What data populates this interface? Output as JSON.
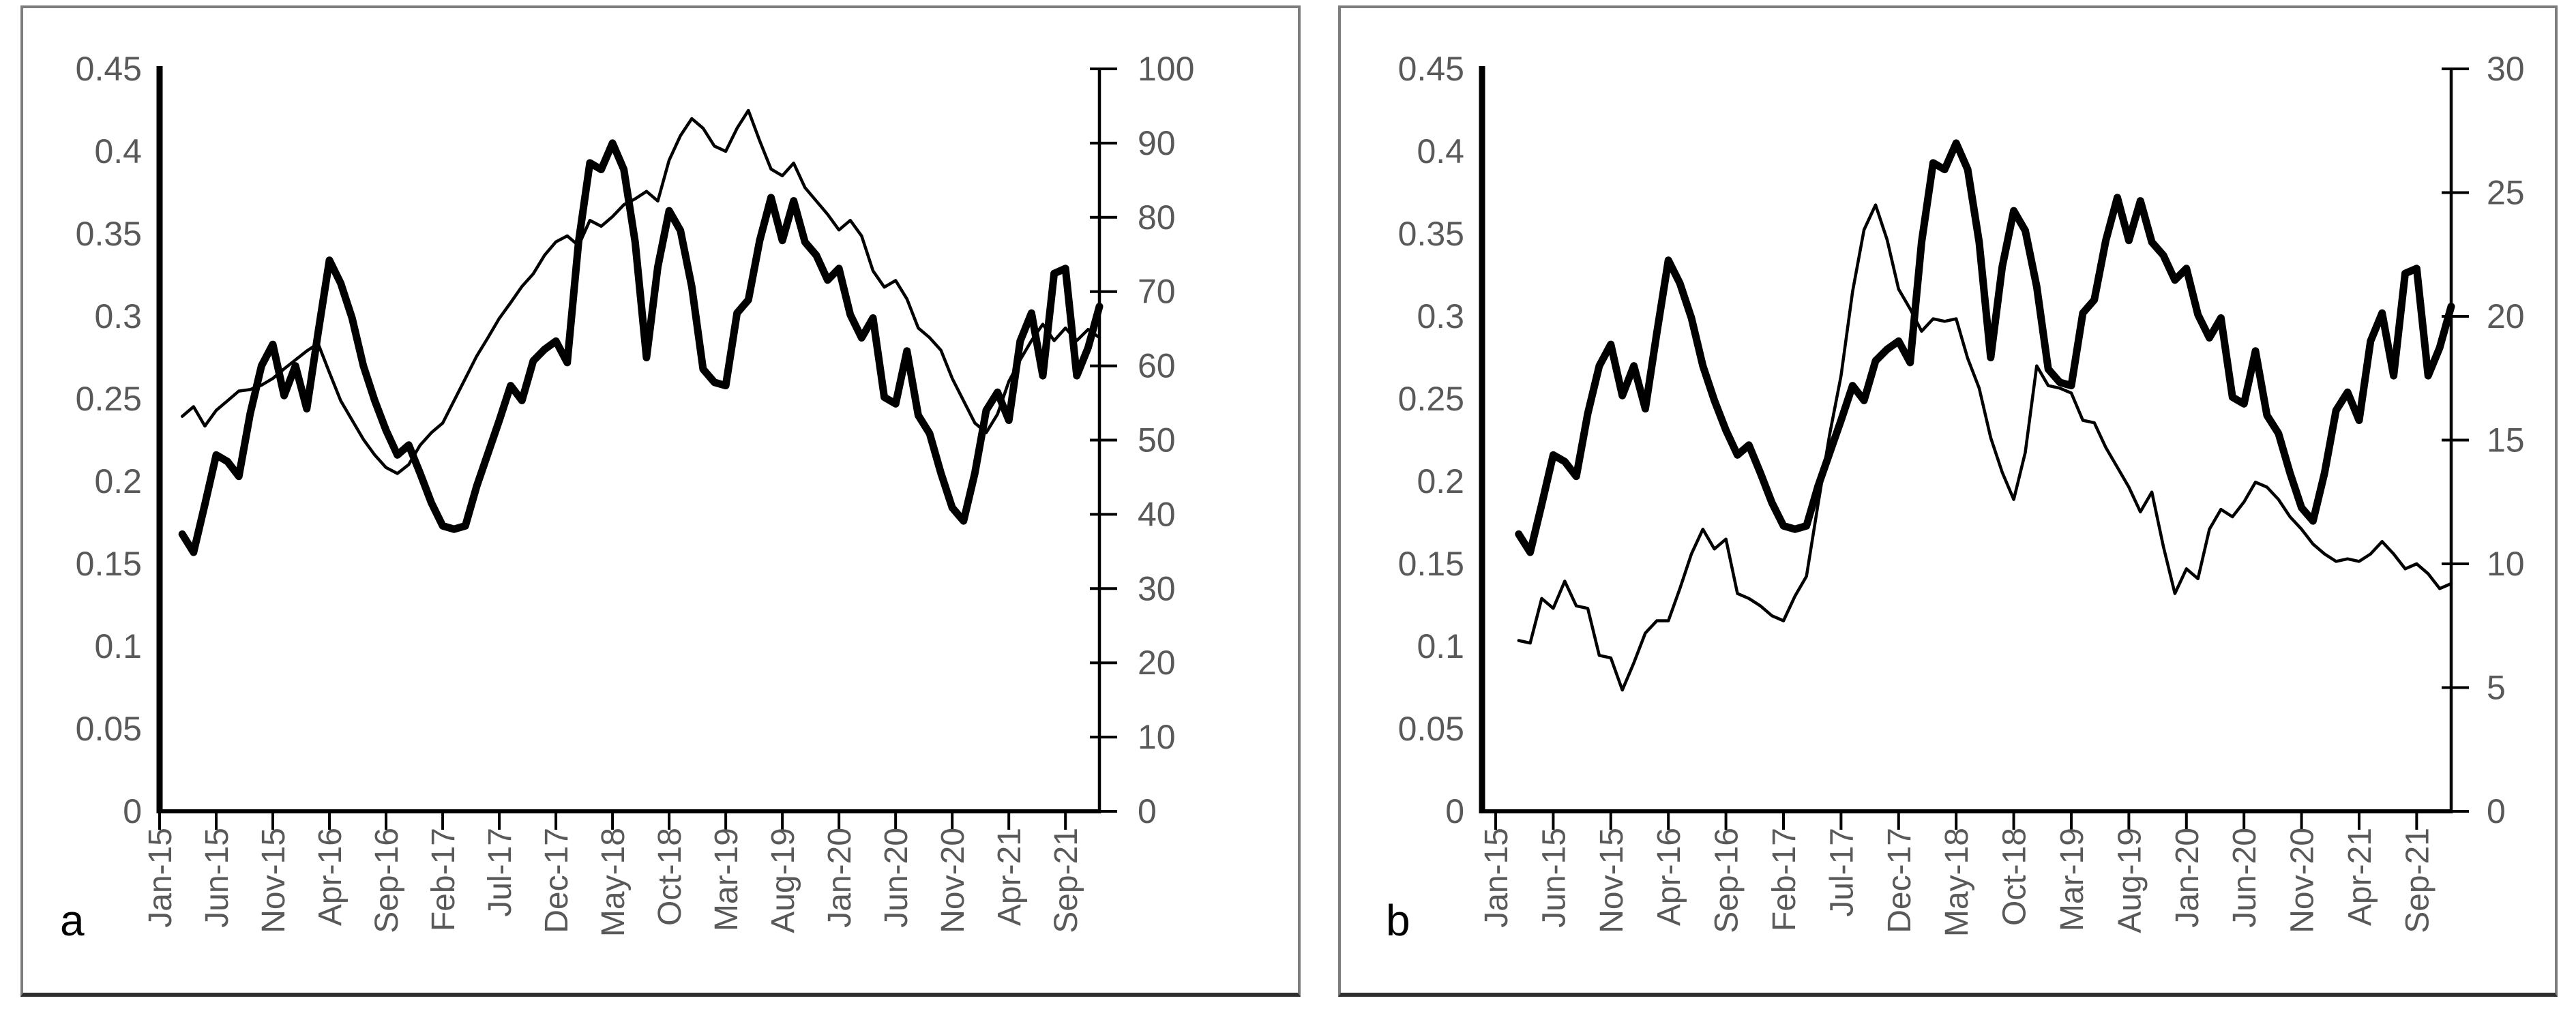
{
  "figure": {
    "background": "#ffffff",
    "series_color": "#000000",
    "axis_label_color": "#595959",
    "axis_line_color": "#000000",
    "panel_border_color": "#7d7d7d"
  },
  "panels": [
    {
      "label": "a"
    },
    {
      "label": "b"
    }
  ],
  "chart_data": [
    {
      "id": "a",
      "type": "line",
      "title": "",
      "corner_label": "a",
      "grid": "off",
      "legend": "none",
      "categories": [
        "Jan-15",
        "Feb-15",
        "Mar-15",
        "Apr-15",
        "May-15",
        "Jun-15",
        "Jul-15",
        "Aug-15",
        "Sep-15",
        "Oct-15",
        "Nov-15",
        "Dec-15",
        "Jan-16",
        "Feb-16",
        "Mar-16",
        "Apr-16",
        "May-16",
        "Jun-16",
        "Jul-16",
        "Aug-16",
        "Sep-16",
        "Oct-16",
        "Nov-16",
        "Dec-16",
        "Jan-17",
        "Feb-17",
        "Mar-17",
        "Apr-17",
        "May-17",
        "Jun-17",
        "Jul-17",
        "Aug-17",
        "Sep-17",
        "Oct-17",
        "Nov-17",
        "Dec-17",
        "Jan-18",
        "Feb-18",
        "Mar-18",
        "Apr-18",
        "May-18",
        "Jun-18",
        "Jul-18",
        "Aug-18",
        "Sep-18",
        "Oct-18",
        "Nov-18",
        "Dec-18",
        "Jan-19",
        "Feb-19",
        "Mar-19",
        "Apr-19",
        "May-19",
        "Jun-19",
        "Jul-19",
        "Aug-19",
        "Sep-19",
        "Oct-19",
        "Nov-19",
        "Dec-19",
        "Jan-20",
        "Feb-20",
        "Mar-20",
        "Apr-20",
        "May-20",
        "Jun-20",
        "Jul-20",
        "Aug-20",
        "Sep-20",
        "Oct-20",
        "Nov-20",
        "Dec-20",
        "Jan-21",
        "Feb-21",
        "Mar-21",
        "Apr-21",
        "May-21",
        "Jun-21",
        "Jul-21",
        "Aug-21",
        "Sep-21",
        "Oct-21",
        "Nov-21",
        "Dec-21"
      ],
      "x_tick_labels": [
        "Jan-15",
        "Jun-15",
        "Nov-15",
        "Apr-16",
        "Sep-16",
        "Feb-17",
        "Jul-17",
        "Dec-17",
        "May-18",
        "Oct-18",
        "Mar-19",
        "Aug-19",
        "Jan-20",
        "Jun-20",
        "Nov-20",
        "Apr-21",
        "Sep-21"
      ],
      "x_tick_every": 5,
      "left_axis": {
        "min": 0,
        "max": 0.45,
        "labels": [
          "0",
          "0.05",
          "0.1",
          "0.15",
          "0.2",
          "0.25",
          "0.3",
          "0.35",
          "0.4",
          "0.45"
        ]
      },
      "right_axis": {
        "min": 0,
        "max": 100,
        "labels": [
          "0",
          "10",
          "20",
          "30",
          "40",
          "50",
          "60",
          "70",
          "80",
          "90",
          "100"
        ]
      },
      "series": [
        {
          "name": "thin-line-right-axis",
          "axis": "right",
          "stroke_width": 4.5,
          "values": [
            null,
            null,
            53.2,
            54.5,
            51.9,
            54.0,
            55.3,
            56.6,
            56.8,
            57.4,
            58.3,
            59.6,
            60.8,
            62.0,
            63.0,
            59.1,
            55.3,
            52.7,
            50.1,
            48.0,
            46.3,
            45.5,
            46.7,
            49.3,
            51.0,
            52.3,
            55.3,
            58.3,
            61.3,
            63.8,
            66.4,
            68.5,
            70.7,
            72.4,
            74.9,
            76.7,
            77.5,
            76.2,
            79.6,
            78.8,
            80.1,
            81.7,
            82.5,
            83.5,
            82.2,
            87.7,
            91.0,
            93.3,
            92.0,
            89.6,
            88.9,
            92.0,
            94.4,
            90.3,
            86.5,
            85.6,
            87.3,
            84.0,
            82.2,
            80.4,
            78.3,
            79.6,
            77.5,
            72.8,
            70.6,
            71.5,
            69.0,
            65.1,
            63.8,
            62.1,
            58.3,
            55.3,
            52.3,
            51.0,
            53.5,
            57.9,
            60.8,
            63.4,
            65.6,
            63.4,
            65.1,
            63.4,
            64.9,
            63.8
          ]
        },
        {
          "name": "thick-line-left-axis",
          "axis": "left",
          "stroke_width": 11,
          "values": [
            null,
            null,
            0.168,
            0.157,
            0.186,
            0.216,
            0.212,
            0.203,
            0.241,
            0.27,
            0.283,
            0.252,
            0.27,
            0.244,
            0.29,
            0.334,
            0.32,
            0.299,
            0.27,
            0.249,
            0.231,
            0.216,
            0.222,
            0.205,
            0.187,
            0.173,
            0.171,
            0.173,
            0.197,
            0.217,
            0.237,
            0.258,
            0.249,
            0.273,
            0.28,
            0.285,
            0.272,
            0.345,
            0.393,
            0.389,
            0.405,
            0.389,
            0.345,
            0.275,
            0.33,
            0.364,
            0.352,
            0.318,
            0.268,
            0.26,
            0.258,
            0.302,
            0.31,
            0.346,
            0.372,
            0.346,
            0.37,
            0.345,
            0.337,
            0.322,
            0.329,
            0.301,
            0.287,
            0.299,
            0.251,
            0.247,
            0.279,
            0.24,
            0.229,
            0.205,
            0.184,
            0.176,
            0.205,
            0.243,
            0.254,
            0.237,
            0.285,
            0.302,
            0.264,
            0.326,
            0.329,
            0.264,
            0.281,
            0.306
          ]
        }
      ]
    },
    {
      "id": "b",
      "type": "line",
      "title": "",
      "corner_label": "b",
      "grid": "off",
      "legend": "none",
      "categories": [
        "Jan-15",
        "Feb-15",
        "Mar-15",
        "Apr-15",
        "May-15",
        "Jun-15",
        "Jul-15",
        "Aug-15",
        "Sep-15",
        "Oct-15",
        "Nov-15",
        "Dec-15",
        "Jan-16",
        "Feb-16",
        "Mar-16",
        "Apr-16",
        "May-16",
        "Jun-16",
        "Jul-16",
        "Aug-16",
        "Sep-16",
        "Oct-16",
        "Nov-16",
        "Dec-16",
        "Jan-17",
        "Feb-17",
        "Mar-17",
        "Apr-17",
        "May-17",
        "Jun-17",
        "Jul-17",
        "Aug-17",
        "Sep-17",
        "Oct-17",
        "Nov-17",
        "Dec-17",
        "Jan-18",
        "Feb-18",
        "Mar-18",
        "Apr-18",
        "May-18",
        "Jun-18",
        "Jul-18",
        "Aug-18",
        "Sep-18",
        "Oct-18",
        "Nov-18",
        "Dec-18",
        "Jan-19",
        "Feb-19",
        "Mar-19",
        "Apr-19",
        "May-19",
        "Jun-19",
        "Jul-19",
        "Aug-19",
        "Sep-19",
        "Oct-19",
        "Nov-19",
        "Dec-19",
        "Jan-20",
        "Feb-20",
        "Mar-20",
        "Apr-20",
        "May-20",
        "Jun-20",
        "Jul-20",
        "Aug-20",
        "Sep-20",
        "Oct-20",
        "Nov-20",
        "Dec-20",
        "Jan-21",
        "Feb-21",
        "Mar-21",
        "Apr-21",
        "May-21",
        "Jun-21",
        "Jul-21",
        "Aug-21",
        "Sep-21",
        "Oct-21",
        "Nov-21",
        "Dec-21"
      ],
      "x_tick_labels": [
        "Jan-15",
        "Jun-15",
        "Nov-15",
        "Apr-16",
        "Sep-16",
        "Feb-17",
        "Jul-17",
        "Dec-17",
        "May-18",
        "Oct-18",
        "Mar-19",
        "Aug-19",
        "Jan-20",
        "Jun-20",
        "Nov-20",
        "Apr-21",
        "Sep-21"
      ],
      "x_tick_every": 5,
      "left_axis": {
        "min": 0,
        "max": 0.45,
        "labels": [
          "0",
          "0.05",
          "0.1",
          "0.15",
          "0.2",
          "0.25",
          "0.3",
          "0.35",
          "0.4",
          "0.45"
        ]
      },
      "right_axis": {
        "min": 0,
        "max": 30,
        "labels": [
          "0",
          "5",
          "10",
          "15",
          "20",
          "25",
          "30"
        ]
      },
      "series": [
        {
          "name": "thin-line-right-axis",
          "axis": "right",
          "stroke_width": 4.5,
          "values": [
            null,
            null,
            6.9,
            6.8,
            8.6,
            8.2,
            9.3,
            8.3,
            8.2,
            6.3,
            6.2,
            4.9,
            6.0,
            7.2,
            7.7,
            7.7,
            9.0,
            10.4,
            11.4,
            10.6,
            11.0,
            8.8,
            8.6,
            8.3,
            7.9,
            7.7,
            8.7,
            9.5,
            12.4,
            15.2,
            17.6,
            21.0,
            23.5,
            24.5,
            23.1,
            21.1,
            20.3,
            19.4,
            19.9,
            19.8,
            19.9,
            18.3,
            17.1,
            15.1,
            13.7,
            12.6,
            14.5,
            18.0,
            17.2,
            17.1,
            16.9,
            15.8,
            15.7,
            14.7,
            13.9,
            13.1,
            12.1,
            12.9,
            10.7,
            8.8,
            9.8,
            9.4,
            11.4,
            12.2,
            11.9,
            12.5,
            13.3,
            13.1,
            12.6,
            11.9,
            11.4,
            10.8,
            10.4,
            10.1,
            10.2,
            10.1,
            10.4,
            10.9,
            10.4,
            9.8,
            10.0,
            9.6,
            9.0,
            9.2
          ]
        },
        {
          "name": "thick-line-left-axis",
          "axis": "left",
          "stroke_width": 11,
          "values": [
            null,
            null,
            0.168,
            0.157,
            0.186,
            0.216,
            0.212,
            0.203,
            0.241,
            0.27,
            0.283,
            0.252,
            0.27,
            0.244,
            0.29,
            0.334,
            0.32,
            0.299,
            0.27,
            0.249,
            0.231,
            0.216,
            0.222,
            0.205,
            0.187,
            0.173,
            0.171,
            0.173,
            0.197,
            0.217,
            0.237,
            0.258,
            0.249,
            0.273,
            0.28,
            0.285,
            0.272,
            0.345,
            0.393,
            0.389,
            0.405,
            0.389,
            0.345,
            0.275,
            0.33,
            0.364,
            0.352,
            0.318,
            0.268,
            0.26,
            0.258,
            0.302,
            0.31,
            0.346,
            0.372,
            0.346,
            0.37,
            0.345,
            0.337,
            0.322,
            0.329,
            0.301,
            0.287,
            0.299,
            0.251,
            0.247,
            0.279,
            0.24,
            0.229,
            0.205,
            0.184,
            0.176,
            0.205,
            0.243,
            0.254,
            0.237,
            0.285,
            0.302,
            0.264,
            0.326,
            0.329,
            0.264,
            0.281,
            0.306
          ]
        }
      ]
    }
  ]
}
